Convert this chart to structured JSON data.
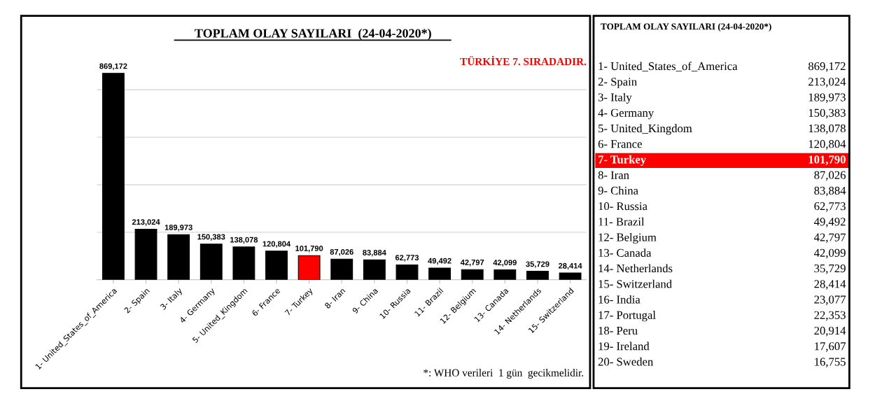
{
  "chart_data": [
    {
      "type": "bar",
      "title": "TOPLAM OLAY SAYILARI  (24-04-2020*)",
      "categories": [
        "1- United_States_of_America",
        "2- Spain",
        "3- Italy",
        "4- Germany",
        "5- United_Kingdom",
        "6- France",
        "7- Turkey",
        "8- Iran",
        "9- China",
        "10- Russia",
        "11- Brazil",
        "12- Belgium",
        "13- Canada",
        "14- Netherlands",
        "15- Switzerland"
      ],
      "values": [
        869172,
        213024,
        189973,
        150383,
        138078,
        120804,
        101790,
        87026,
        83884,
        62773,
        49492,
        42797,
        42099,
        35729,
        28414
      ],
      "value_labels": [
        "869,172",
        "213,024",
        "189,973",
        "150,383",
        "138,078",
        "120,804",
        "101,790",
        "87,026",
        "83,884",
        "62,773",
        "49,492",
        "42,797",
        "42,099",
        "35,729",
        "28,414"
      ],
      "colors": [
        "#000000",
        "#000000",
        "#000000",
        "#000000",
        "#000000",
        "#000000",
        "#ff0000",
        "#000000",
        "#000000",
        "#000000",
        "#000000",
        "#000000",
        "#000000",
        "#000000",
        "#000000"
      ],
      "tick_labels": "x",
      "grid": "y",
      "annotations": [
        "TÜRKİYE 7. SIRADADIR.",
        "*: WHO verileri  1 gün  gecikmelidir."
      ]
    },
    {
      "type": "other",
      "title": "TOPLAM OLAY SAYILARI (24-04-2020*)",
      "categories": [
        "1- United_States_of_America",
        "2- Spain",
        "3- Italy",
        "4- Germany",
        "5- United_Kingdom",
        "6- France",
        "7- Turkey",
        "8- Iran",
        "9- China",
        "10- Russia",
        "11- Brazil",
        "12- Belgium",
        "13- Canada",
        "14- Netherlands",
        "15- Switzerland",
        "16- India",
        "17- Portugal",
        "18- Peru",
        "19- Ireland",
        "20- Sweden"
      ],
      "value_labels": [
        "869,172",
        "213,024",
        "189,973",
        "150,383",
        "138,078",
        "120,804",
        "101,790",
        "87,026",
        "83,884",
        "62,773",
        "49,492",
        "42,797",
        "42,099",
        "35,729",
        "28,414",
        "23,077",
        "22,353",
        "20,914",
        "17,607",
        "16,755"
      ],
      "colors": [
        null,
        null,
        null,
        null,
        null,
        null,
        "#ff0000",
        null,
        null,
        null,
        null,
        null,
        null,
        null,
        null,
        null,
        null,
        null,
        null,
        null
      ]
    }
  ]
}
